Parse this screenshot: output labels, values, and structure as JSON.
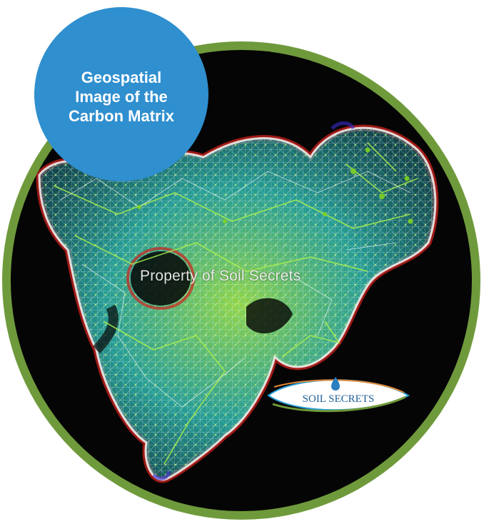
{
  "badge": {
    "title": "Geospatial Image of the Carbon Matrix"
  },
  "watermark": {
    "text": "Property of Soil Secrets"
  },
  "logo": {
    "brand_text": "SOIL SECRETS",
    "tagline": ""
  },
  "colors": {
    "frame_ring": "#6f9a3c",
    "badge_background": "#2f8fcf",
    "disc_background": "#050505",
    "matrix_teal": "#2fb9b0",
    "matrix_green": "#8cd63c",
    "matrix_red": "#d0211c",
    "matrix_white": "#f2f2f2"
  }
}
